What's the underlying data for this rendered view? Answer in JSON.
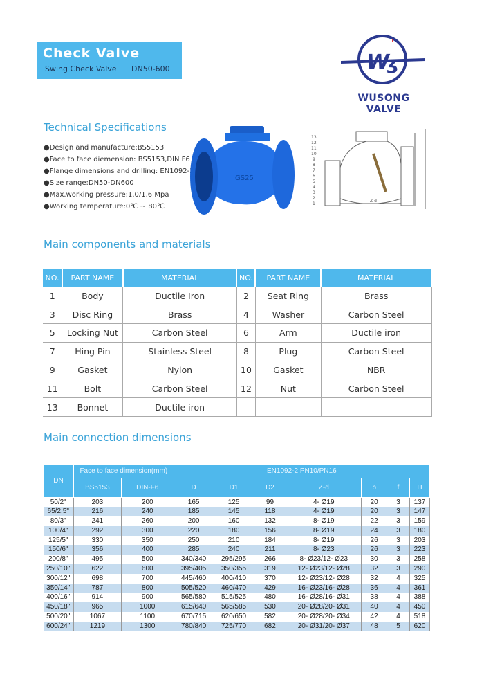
{
  "header": {
    "title": "Check Valve",
    "subtitle": "Swing Check Valve",
    "size": "DN50-600"
  },
  "logo": {
    "text": "WUSONG VALVE",
    "mark": "WS",
    "colors": {
      "navy": "#2b3990",
      "red": "#e03a3e"
    }
  },
  "tech": {
    "heading": "Technical Specifications",
    "items": [
      "●Design and manufacture:BS5153",
      "●Face to face diemension: BS5153,DIN F6",
      "●Flange dimensions and drilling: EN1092-2",
      "●Size range:DN50-DN600",
      "●Max.working pressure:1.0/1.6 Mpa",
      "●Working temperature:0℃ ~ 80℃"
    ]
  },
  "drawing": {
    "labels": [
      "13",
      "12",
      "11",
      "10",
      "9",
      "8",
      "7",
      "6",
      "5",
      "4",
      "3",
      "2",
      "1"
    ],
    "dim_label": "Z-d"
  },
  "components": {
    "heading": "Main components and materials",
    "headers": [
      "NO.",
      "PART NAME",
      "MATERIAL",
      "NO.",
      "PART NAME",
      "MATERIAL"
    ],
    "rows": [
      [
        "1",
        "Body",
        "Ductile Iron",
        "2",
        "Seat Ring",
        "Brass"
      ],
      [
        "3",
        "Disc Ring",
        "Brass",
        "4",
        "Washer",
        "Carbon Steel"
      ],
      [
        "5",
        "Locking Nut",
        "Carbon Steel",
        "6",
        "Arm",
        "Ductile iron"
      ],
      [
        "7",
        "Hing Pin",
        "Stainless Steel",
        "8",
        "Plug",
        "Carbon Steel"
      ],
      [
        "9",
        "Gasket",
        "Nylon",
        "10",
        "Gasket",
        "NBR"
      ],
      [
        "11",
        "Bolt",
        "Carbon Steel",
        "12",
        "Nut",
        "Carbon Steel"
      ],
      [
        "13",
        "Bonnet",
        "Ductile iron",
        "",
        "",
        ""
      ]
    ]
  },
  "dimensions": {
    "heading": "Main connection dimensions",
    "group_headers": {
      "dn": "DN",
      "face": "Face to face dimension(mm)",
      "flange": "EN1092-2    PN10/PN16"
    },
    "headers": [
      "BS5153",
      "DIN-F6",
      "D",
      "D1",
      "D2",
      "Z-d",
      "b",
      "f",
      "H"
    ],
    "rows": [
      [
        "50/2\"",
        "203",
        "200",
        "165",
        "125",
        "99",
        "4- Ø19",
        "20",
        "3",
        "137"
      ],
      [
        "65/2.5\"",
        "216",
        "240",
        "185",
        "145",
        "118",
        "4- Ø19",
        "20",
        "3",
        "147"
      ],
      [
        "80/3\"",
        "241",
        "260",
        "200",
        "160",
        "132",
        "8- Ø19",
        "22",
        "3",
        "159"
      ],
      [
        "100/4\"",
        "292",
        "300",
        "220",
        "180",
        "156",
        "8- Ø19",
        "24",
        "3",
        "180"
      ],
      [
        "125/5\"",
        "330",
        "350",
        "250",
        "210",
        "184",
        "8- Ø19",
        "26",
        "3",
        "203"
      ],
      [
        "150/6\"",
        "356",
        "400",
        "285",
        "240",
        "211",
        "8- Ø23",
        "26",
        "3",
        "223"
      ],
      [
        "200/8\"",
        "495",
        "500",
        "340/340",
        "295/295",
        "266",
        "8- Ø23/12- Ø23",
        "30",
        "3",
        "258"
      ],
      [
        "250/10\"",
        "622",
        "600",
        "395/405",
        "350/355",
        "319",
        "12- Ø23/12- Ø28",
        "32",
        "3",
        "290"
      ],
      [
        "300/12\"",
        "698",
        "700",
        "445/460",
        "400/410",
        "370",
        "12- Ø23/12- Ø28",
        "32",
        "4",
        "325"
      ],
      [
        "350/14\"",
        "787",
        "800",
        "505/520",
        "460/470",
        "429",
        "16- Ø23/16- Ø28",
        "36",
        "4",
        "361"
      ],
      [
        "400/16\"",
        "914",
        "900",
        "565/580",
        "515/525",
        "480",
        "16- Ø28/16- Ø31",
        "38",
        "4",
        "388"
      ],
      [
        "450/18\"",
        "965",
        "1000",
        "615/640",
        "565/585",
        "530",
        "20- Ø28/20- Ø31",
        "40",
        "4",
        "450"
      ],
      [
        "500/20\"",
        "1067",
        "1100",
        "670/715",
        "620/650",
        "582",
        "20- Ø28/20- Ø34",
        "42",
        "4",
        "518"
      ],
      [
        "600/24\"",
        "1219",
        "1300",
        "780/840",
        "725/770",
        "682",
        "20- Ø31/20- Ø37",
        "48",
        "5",
        "620"
      ]
    ]
  }
}
